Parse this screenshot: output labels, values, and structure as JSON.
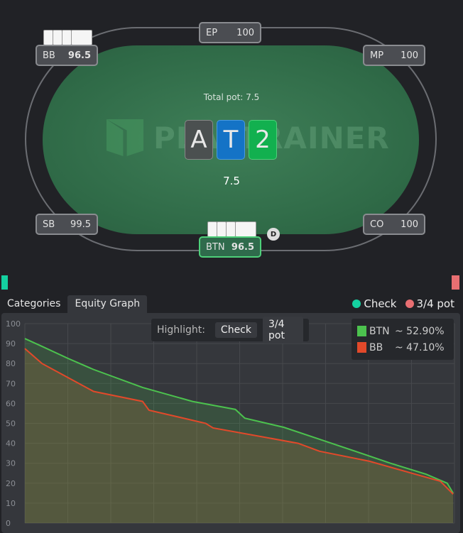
{
  "table": {
    "seats": [
      {
        "pos": "BB",
        "stack": "96.5"
      },
      {
        "pos": "EP",
        "stack": "100"
      },
      {
        "pos": "MP",
        "stack": "100"
      },
      {
        "pos": "SB",
        "stack": "99.5"
      },
      {
        "pos": "BTN",
        "stack": "96.5",
        "active": true
      },
      {
        "pos": "CO",
        "stack": "100"
      }
    ],
    "dealer": "D",
    "total_pot": "Total pot: 7.5",
    "pot": "7.5",
    "watermark": "PLAYTRAINER",
    "board": [
      {
        "rank": "A",
        "color": "#4b5050"
      },
      {
        "rank": "T",
        "color": "#1473c6"
      },
      {
        "rank": "2",
        "color": "#12b04f"
      }
    ]
  },
  "tabs": [
    {
      "label": "Categories"
    },
    {
      "label": "Equity Graph",
      "selected": true
    }
  ],
  "actions_legend": [
    {
      "label": "Check",
      "color": "#14d1a0"
    },
    {
      "label": "3/4 pot",
      "color": "#e86f72"
    }
  ],
  "highlight": {
    "label": "Highlight:",
    "buttons": [
      "Check",
      "3/4 pot"
    ]
  },
  "chart_data": {
    "type": "line",
    "ylim": [
      0,
      100
    ],
    "yticks": [
      "100",
      "90",
      "80",
      "70",
      "60",
      "50",
      "40",
      "30",
      "20",
      "10",
      "0"
    ],
    "xlim": [
      0,
      100
    ],
    "grid": true,
    "legend": "top-right",
    "series": [
      {
        "name": "BTN",
        "equity": "~ 52.90%",
        "color": "#4cc24e",
        "x": [
          0,
          4,
          10,
          16,
          27.4,
          39,
          49,
          51.2,
          60.3,
          68.6,
          76.9,
          85.1,
          93.4,
          98.3,
          99.7
        ],
        "y": [
          92.5,
          88.6,
          82.6,
          77,
          68,
          61,
          57,
          52.6,
          48,
          42,
          36,
          30,
          24.5,
          20,
          15
        ]
      },
      {
        "name": "BB",
        "equity": "~ 47.10%",
        "color": "#e2492a",
        "x": [
          0,
          4,
          10,
          16,
          27.4,
          28.9,
          42.1,
          43.8,
          52.1,
          63.6,
          68.6,
          80.2,
          91.7,
          96.7,
          99.7
        ],
        "y": [
          87.5,
          80,
          73,
          66,
          61,
          56.6,
          50,
          47.7,
          44.5,
          40,
          36,
          31,
          24,
          21,
          14.5
        ]
      }
    ]
  }
}
